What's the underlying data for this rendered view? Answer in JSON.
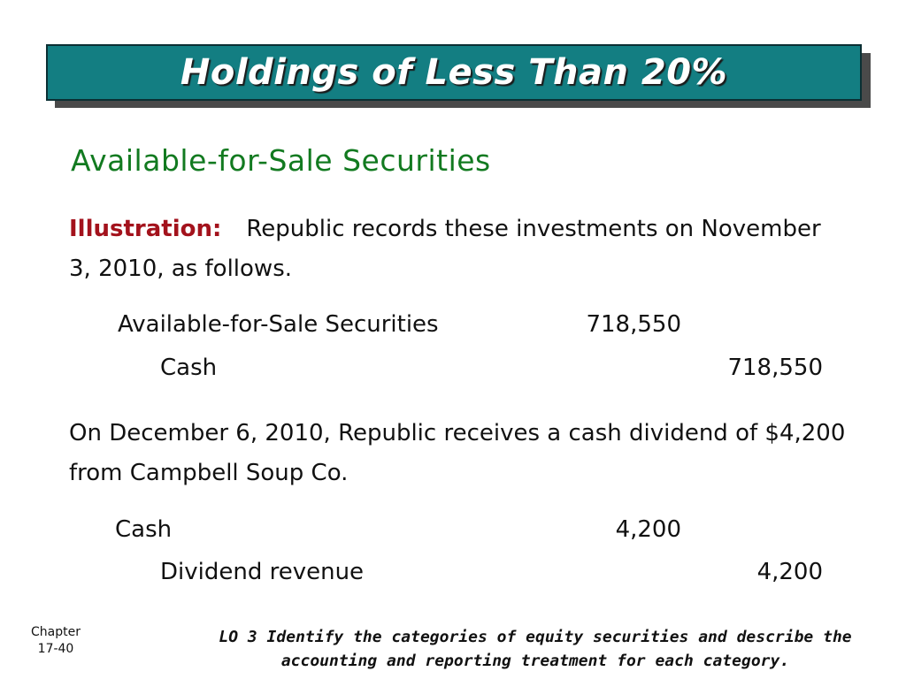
{
  "slide": {
    "title": "Holdings of Less Than 20%",
    "subtitle": "Available-for-Sale Securities",
    "illustration_label": "Illustration:",
    "illustration_text": "Republic records these investments on November 3, 2010, as follows.",
    "entry1": {
      "debit_account": "Available-for-Sale Securities",
      "debit_amount": "718,550",
      "credit_account": "Cash",
      "credit_amount": "718,550"
    },
    "dividend_text": "On December 6, 2010, Republic receives a cash dividend of $4,200 from Campbell Soup Co.",
    "entry2": {
      "debit_account": "Cash",
      "debit_amount": "4,200",
      "credit_account": "Dividend revenue",
      "credit_amount": "4,200"
    }
  },
  "footer": {
    "chapter_label": "Chapter",
    "chapter_number": "17-40",
    "learning_objective": "LO 3 Identify the categories of equity securities and describe the accounting and reporting treatment for each category."
  },
  "colors": {
    "banner": "#137e82",
    "subtitle": "#127a20",
    "label": "#a3121c"
  }
}
